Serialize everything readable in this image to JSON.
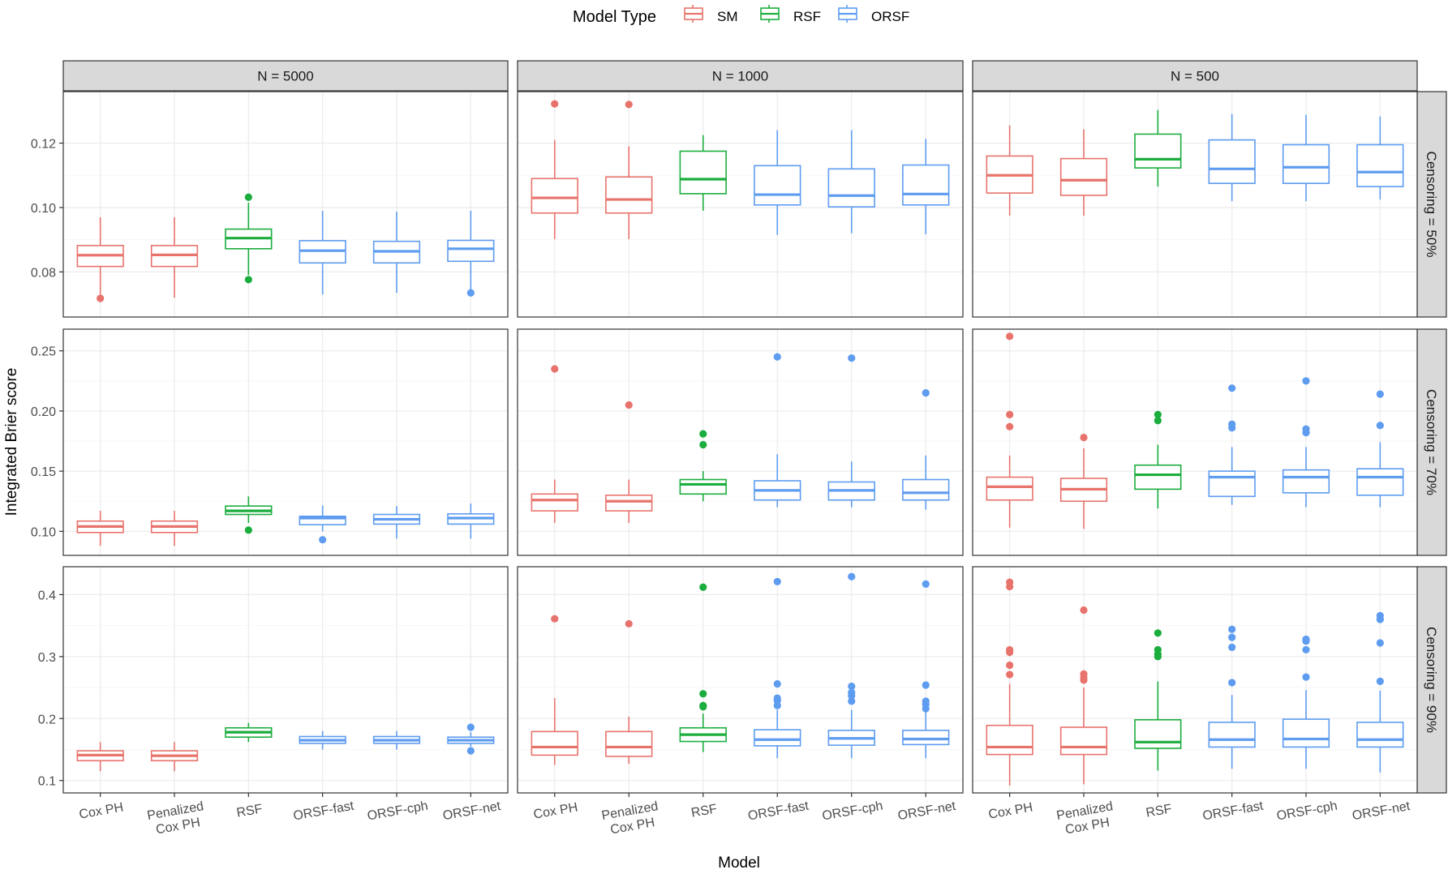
{
  "chart_data": {
    "type": "box",
    "xlabel": "Model",
    "ylabel": "Integrated Brier score",
    "legend": {
      "title": "Model Type",
      "position": "top",
      "entries": [
        {
          "label": "SM",
          "color": "#E8736C"
        },
        {
          "label": "RSF",
          "color": "#1BAD3D"
        },
        {
          "label": "ORSF",
          "color": "#5E9CF0"
        }
      ]
    },
    "categories": [
      "Cox PH",
      "Penalized\nCox PH",
      "RSF",
      "ORSF-fast",
      "ORSF-cph",
      "ORSF-net"
    ],
    "category_groups": [
      "SM",
      "SM",
      "RSF",
      "ORSF",
      "ORSF",
      "ORSF"
    ],
    "col_facets": [
      "N = 5000",
      "N = 1000",
      "N = 500"
    ],
    "row_facets": [
      {
        "label": "Censoring = 50%",
        "ylim": [
          0.066,
          0.136
        ],
        "yticks": [
          0.08,
          0.1,
          0.12
        ],
        "tick_labels": [
          "0.08",
          "0.10",
          "0.12"
        ]
      },
      {
        "label": "Censoring = 70%",
        "ylim": [
          0.08,
          0.268
        ],
        "yticks": [
          0.1,
          0.15,
          0.2,
          0.25
        ],
        "tick_labels": [
          "0.10",
          "0.15",
          "0.20",
          "0.25"
        ]
      },
      {
        "label": "Censoring = 90%",
        "ylim": [
          0.08,
          0.445
        ],
        "yticks": [
          0.1,
          0.2,
          0.3,
          0.4
        ],
        "tick_labels": [
          "0.1",
          "0.2",
          "0.3",
          "0.4"
        ]
      }
    ],
    "panels": [
      [
        [
          {
            "low": 0.072,
            "q1": 0.0817,
            "median": 0.0852,
            "q3": 0.0882,
            "high": 0.097,
            "outliers": [
              0.0718
            ]
          },
          {
            "low": 0.072,
            "q1": 0.0817,
            "median": 0.0853,
            "q3": 0.0882,
            "high": 0.097,
            "outliers": []
          },
          {
            "low": 0.079,
            "q1": 0.0872,
            "median": 0.0905,
            "q3": 0.0933,
            "high": 0.1015,
            "outliers": [
              0.1032,
              0.0776
            ]
          },
          {
            "low": 0.073,
            "q1": 0.0828,
            "median": 0.0866,
            "q3": 0.0897,
            "high": 0.099,
            "outliers": []
          },
          {
            "low": 0.0735,
            "q1": 0.0828,
            "median": 0.0864,
            "q3": 0.0895,
            "high": 0.0987,
            "outliers": []
          },
          {
            "low": 0.0745,
            "q1": 0.0833,
            "median": 0.0872,
            "q3": 0.0898,
            "high": 0.099,
            "outliers": [
              0.0735
            ]
          }
        ],
        [
          {
            "low": 0.0902,
            "q1": 0.0983,
            "median": 0.103,
            "q3": 0.109,
            "high": 0.121,
            "outliers": [
              0.1322
            ]
          },
          {
            "low": 0.0902,
            "q1": 0.0983,
            "median": 0.1025,
            "q3": 0.1095,
            "high": 0.119,
            "outliers": [
              0.132
            ]
          },
          {
            "low": 0.099,
            "q1": 0.1043,
            "median": 0.1088,
            "q3": 0.1175,
            "high": 0.1225,
            "outliers": []
          },
          {
            "low": 0.0915,
            "q1": 0.1008,
            "median": 0.104,
            "q3": 0.113,
            "high": 0.124,
            "outliers": []
          },
          {
            "low": 0.092,
            "q1": 0.1002,
            "median": 0.1037,
            "q3": 0.112,
            "high": 0.124,
            "outliers": []
          },
          {
            "low": 0.0917,
            "q1": 0.1008,
            "median": 0.1042,
            "q3": 0.1132,
            "high": 0.1213,
            "outliers": []
          }
        ],
        [
          {
            "low": 0.0975,
            "q1": 0.1045,
            "median": 0.11,
            "q3": 0.116,
            "high": 0.1255,
            "outliers": []
          },
          {
            "low": 0.0975,
            "q1": 0.1038,
            "median": 0.1085,
            "q3": 0.1152,
            "high": 0.1243,
            "outliers": []
          },
          {
            "low": 0.1065,
            "q1": 0.1123,
            "median": 0.115,
            "q3": 0.1228,
            "high": 0.1303,
            "outliers": []
          },
          {
            "low": 0.102,
            "q1": 0.1075,
            "median": 0.112,
            "q3": 0.121,
            "high": 0.129,
            "outliers": []
          },
          {
            "low": 0.102,
            "q1": 0.1075,
            "median": 0.1125,
            "q3": 0.1195,
            "high": 0.1288,
            "outliers": []
          },
          {
            "low": 0.1025,
            "q1": 0.1065,
            "median": 0.111,
            "q3": 0.1195,
            "high": 0.1283,
            "outliers": []
          }
        ]
      ],
      [
        [
          {
            "low": 0.088,
            "q1": 0.099,
            "median": 0.104,
            "q3": 0.1085,
            "high": 0.117,
            "outliers": []
          },
          {
            "low": 0.088,
            "q1": 0.099,
            "median": 0.104,
            "q3": 0.1085,
            "high": 0.117,
            "outliers": []
          },
          {
            "low": 0.107,
            "q1": 0.114,
            "median": 0.117,
            "q3": 0.121,
            "high": 0.129,
            "outliers": [
              0.101
            ]
          },
          {
            "low": 0.1,
            "q1": 0.1055,
            "median": 0.111,
            "q3": 0.1125,
            "high": 0.1215,
            "outliers": [
              0.093
            ]
          },
          {
            "low": 0.094,
            "q1": 0.106,
            "median": 0.11,
            "q3": 0.114,
            "high": 0.121,
            "outliers": []
          },
          {
            "low": 0.094,
            "q1": 0.106,
            "median": 0.111,
            "q3": 0.1145,
            "high": 0.123,
            "outliers": []
          }
        ],
        [
          {
            "low": 0.107,
            "q1": 0.117,
            "median": 0.126,
            "q3": 0.131,
            "high": 0.143,
            "outliers": [
              0.235
            ]
          },
          {
            "low": 0.107,
            "q1": 0.117,
            "median": 0.125,
            "q3": 0.13,
            "high": 0.143,
            "outliers": [
              0.205
            ]
          },
          {
            "low": 0.125,
            "q1": 0.131,
            "median": 0.139,
            "q3": 0.143,
            "high": 0.15,
            "outliers": [
              0.181,
              0.172
            ]
          },
          {
            "low": 0.12,
            "q1": 0.126,
            "median": 0.134,
            "q3": 0.142,
            "high": 0.164,
            "outliers": [
              0.245
            ]
          },
          {
            "low": 0.12,
            "q1": 0.126,
            "median": 0.134,
            "q3": 0.141,
            "high": 0.158,
            "outliers": [
              0.244
            ]
          },
          {
            "low": 0.118,
            "q1": 0.126,
            "median": 0.132,
            "q3": 0.143,
            "high": 0.163,
            "outliers": [
              0.215
            ]
          }
        ],
        [
          {
            "low": 0.103,
            "q1": 0.126,
            "median": 0.137,
            "q3": 0.145,
            "high": 0.163,
            "outliers": [
              0.262,
              0.197,
              0.187
            ]
          },
          {
            "low": 0.102,
            "q1": 0.125,
            "median": 0.135,
            "q3": 0.144,
            "high": 0.169,
            "outliers": [
              0.178
            ]
          },
          {
            "low": 0.119,
            "q1": 0.135,
            "median": 0.147,
            "q3": 0.155,
            "high": 0.172,
            "outliers": [
              0.197,
              0.192
            ]
          },
          {
            "low": 0.122,
            "q1": 0.129,
            "median": 0.145,
            "q3": 0.15,
            "high": 0.17,
            "outliers": [
              0.219,
              0.189,
              0.186
            ]
          },
          {
            "low": 0.12,
            "q1": 0.132,
            "median": 0.145,
            "q3": 0.151,
            "high": 0.17,
            "outliers": [
              0.225,
              0.185,
              0.182
            ]
          },
          {
            "low": 0.12,
            "q1": 0.13,
            "median": 0.145,
            "q3": 0.152,
            "high": 0.174,
            "outliers": [
              0.214,
              0.188
            ]
          }
        ]
      ],
      [
        [
          {
            "low": 0.115,
            "q1": 0.132,
            "median": 0.141,
            "q3": 0.148,
            "high": 0.162,
            "outliers": []
          },
          {
            "low": 0.115,
            "q1": 0.132,
            "median": 0.14,
            "q3": 0.148,
            "high": 0.162,
            "outliers": []
          },
          {
            "low": 0.162,
            "q1": 0.17,
            "median": 0.178,
            "q3": 0.185,
            "high": 0.193,
            "outliers": []
          },
          {
            "low": 0.15,
            "q1": 0.16,
            "median": 0.165,
            "q3": 0.171,
            "high": 0.18,
            "outliers": []
          },
          {
            "low": 0.15,
            "q1": 0.16,
            "median": 0.165,
            "q3": 0.171,
            "high": 0.18,
            "outliers": []
          },
          {
            "low": 0.155,
            "q1": 0.16,
            "median": 0.165,
            "q3": 0.17,
            "high": 0.178,
            "outliers": [
              0.186,
              0.148
            ]
          }
        ],
        [
          {
            "low": 0.125,
            "q1": 0.141,
            "median": 0.154,
            "q3": 0.179,
            "high": 0.233,
            "outliers": [
              0.361
            ]
          },
          {
            "low": 0.127,
            "q1": 0.139,
            "median": 0.154,
            "q3": 0.179,
            "high": 0.203,
            "outliers": [
              0.353
            ]
          },
          {
            "low": 0.146,
            "q1": 0.163,
            "median": 0.174,
            "q3": 0.185,
            "high": 0.208,
            "outliers": [
              0.412,
              0.24,
              0.221,
              0.219
            ]
          },
          {
            "low": 0.136,
            "q1": 0.156,
            "median": 0.166,
            "q3": 0.182,
            "high": 0.214,
            "outliers": [
              0.421,
              0.256,
              0.233,
              0.229,
              0.221
            ]
          },
          {
            "low": 0.136,
            "q1": 0.157,
            "median": 0.168,
            "q3": 0.181,
            "high": 0.214,
            "outliers": [
              0.429,
              0.252,
              0.242,
              0.237,
              0.228
            ]
          },
          {
            "low": 0.136,
            "q1": 0.158,
            "median": 0.167,
            "q3": 0.181,
            "high": 0.212,
            "outliers": [
              0.417,
              0.254,
              0.228,
              0.223,
              0.216
            ]
          }
        ],
        [
          {
            "low": 0.092,
            "q1": 0.142,
            "median": 0.154,
            "q3": 0.189,
            "high": 0.256,
            "outliers": [
              0.42,
              0.413,
              0.311,
              0.307,
              0.286,
              0.271
            ]
          },
          {
            "low": 0.094,
            "q1": 0.142,
            "median": 0.154,
            "q3": 0.186,
            "high": 0.25,
            "outliers": [
              0.375,
              0.272,
              0.266,
              0.262
            ]
          },
          {
            "low": 0.116,
            "q1": 0.152,
            "median": 0.162,
            "q3": 0.198,
            "high": 0.26,
            "outliers": [
              0.338,
              0.311,
              0.304,
              0.3
            ]
          },
          {
            "low": 0.119,
            "q1": 0.154,
            "median": 0.166,
            "q3": 0.194,
            "high": 0.238,
            "outliers": [
              0.344,
              0.331,
              0.315,
              0.258
            ]
          },
          {
            "low": 0.119,
            "q1": 0.154,
            "median": 0.167,
            "q3": 0.199,
            "high": 0.246,
            "outliers": [
              0.328,
              0.325,
              0.311,
              0.267
            ]
          },
          {
            "low": 0.113,
            "q1": 0.154,
            "median": 0.166,
            "q3": 0.194,
            "high": 0.245,
            "outliers": [
              0.366,
              0.36,
              0.322,
              0.26
            ]
          }
        ]
      ]
    ]
  }
}
